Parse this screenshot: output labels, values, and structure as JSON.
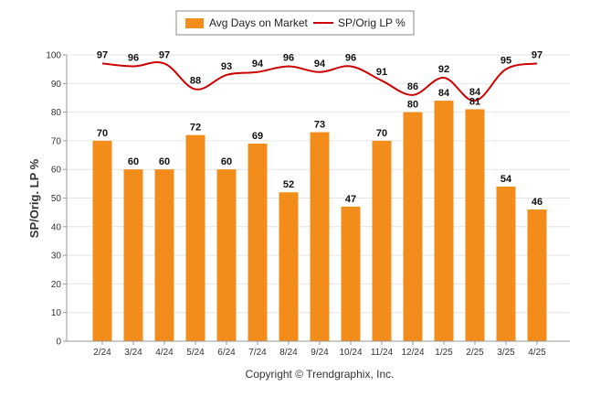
{
  "chart_data": {
    "type": "bar",
    "categories": [
      "2/24",
      "3/24",
      "4/24",
      "5/24",
      "6/24",
      "7/24",
      "8/24",
      "9/24",
      "10/24",
      "11/24",
      "12/24",
      "1/25",
      "2/25",
      "3/25",
      "4/25"
    ],
    "series": [
      {
        "name": "Avg Days on Market",
        "type": "bar",
        "color": "#f28c1a",
        "values": [
          70,
          60,
          60,
          72,
          60,
          69,
          52,
          73,
          47,
          70,
          80,
          84,
          81,
          54,
          46
        ]
      },
      {
        "name": "SP/Orig LP %",
        "type": "line",
        "color": "#cc0000",
        "values": [
          97,
          96,
          97,
          88,
          93,
          94,
          96,
          94,
          96,
          91,
          86,
          92,
          84,
          95,
          97
        ]
      }
    ],
    "ylabel": "SP/Orig. LP %",
    "ylim": [
      0,
      100
    ],
    "yticks": [
      0,
      10,
      20,
      30,
      40,
      50,
      60,
      70,
      80,
      90,
      100
    ],
    "grid": true,
    "legend_position": "top-center"
  },
  "credit": "Copyright © Trendgraphix, Inc."
}
